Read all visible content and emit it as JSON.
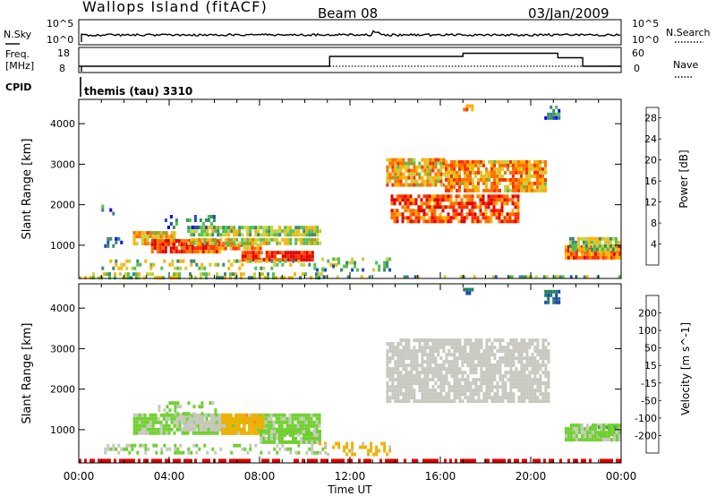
{
  "header": {
    "site": "Wallops Island (fitACF)",
    "beam": "Beam 08",
    "date": "03/Jan/2009"
  },
  "summary": {
    "nsky_label": "N.Sky",
    "nsearch_label": "N.Search",
    "freq_label_1": "Freq.",
    "freq_label_2": "[MHz]",
    "nave_label": "Nave",
    "cpid_label": "CPID",
    "cpid_value": "themis (tau) 3310",
    "noise_ticks": [
      "10^5",
      "10^0"
    ],
    "freq_ticks": [
      "18",
      "8"
    ],
    "nave_ticks": [
      "60",
      "0"
    ]
  },
  "colors": {
    "power_scale": [
      "#0000ff",
      "#2050b0",
      "#3c8a6e",
      "#52c052",
      "#c8d040",
      "#ffb000",
      "#ff7000",
      "#ff3000",
      "#e00000"
    ],
    "velocity_scale": [
      "#e00000",
      "#ff4000",
      "#ff8c00",
      "#f0b000",
      "#c8c8c0",
      "#70d030",
      "#40b040",
      "#208060",
      "#2040c0"
    ]
  },
  "chart_data": [
    {
      "type": "heatmap",
      "title": "",
      "xlabel": "Time UT",
      "ylabel": "Slant Range [km]",
      "xlim": [
        "00:00",
        "24:00"
      ],
      "ylim": [
        180,
        4600
      ],
      "x_ticks": [
        "00:00",
        "04:00",
        "08:00",
        "12:00",
        "16:00",
        "20:00",
        "00:00"
      ],
      "y_ticks": [
        1000,
        2000,
        3000,
        4000
      ],
      "colorbar": {
        "label": "Power [dB]",
        "ticks": [
          4,
          8,
          12,
          16,
          20,
          24,
          28
        ],
        "range": [
          0,
          30
        ]
      },
      "regions": [
        {
          "t_start": 0.0,
          "t_end": 10.8,
          "r_low": 200,
          "r_high": 330,
          "value": 14,
          "density": 0.5
        },
        {
          "t_start": 10.8,
          "t_end": 24.0,
          "r_low": 200,
          "r_high": 260,
          "value": 12,
          "density": 0.35
        },
        {
          "t_start": 2.4,
          "t_end": 4.2,
          "r_low": 1050,
          "r_high": 1350,
          "value": 18,
          "density": 0.9
        },
        {
          "t_start": 3.2,
          "t_end": 6.2,
          "r_low": 850,
          "r_high": 1150,
          "value": 25,
          "density": 0.95
        },
        {
          "t_start": 6.2,
          "t_end": 8.0,
          "r_low": 900,
          "r_high": 1050,
          "value": 21,
          "density": 0.85
        },
        {
          "t_start": 4.8,
          "t_end": 10.7,
          "r_low": 1300,
          "r_high": 1480,
          "value": 14,
          "density": 0.85
        },
        {
          "t_start": 4.8,
          "t_end": 10.7,
          "r_low": 1020,
          "r_high": 1180,
          "value": 16,
          "density": 0.85
        },
        {
          "t_start": 7.2,
          "t_end": 10.3,
          "r_low": 680,
          "r_high": 860,
          "value": 26,
          "density": 0.95
        },
        {
          "t_start": 3.8,
          "t_end": 6.0,
          "r_low": 1450,
          "r_high": 1750,
          "value": 8,
          "density": 0.35
        },
        {
          "t_start": 1.0,
          "t_end": 11.5,
          "r_low": 400,
          "r_high": 650,
          "value": 14,
          "density": 0.3
        },
        {
          "t_start": 10.5,
          "t_end": 13.8,
          "r_low": 350,
          "r_high": 700,
          "value": 11,
          "density": 0.25
        },
        {
          "t_start": 13.6,
          "t_end": 16.2,
          "r_low": 2450,
          "r_high": 3150,
          "value": 18,
          "density": 0.85
        },
        {
          "t_start": 16.2,
          "t_end": 20.6,
          "r_low": 2350,
          "r_high": 3100,
          "value": 19,
          "density": 0.85
        },
        {
          "t_start": 13.8,
          "t_end": 19.5,
          "r_low": 1550,
          "r_high": 2250,
          "value": 24,
          "density": 0.75
        },
        {
          "t_start": 17.0,
          "t_end": 17.4,
          "r_low": 4350,
          "r_high": 4480,
          "value": 18,
          "density": 0.8
        },
        {
          "t_start": 20.6,
          "t_end": 21.2,
          "r_low": 4150,
          "r_high": 4450,
          "value": 7,
          "density": 0.75
        },
        {
          "t_start": 21.5,
          "t_end": 23.9,
          "r_low": 700,
          "r_high": 1000,
          "value": 23,
          "density": 0.95
        },
        {
          "t_start": 21.7,
          "t_end": 23.9,
          "r_low": 900,
          "r_high": 1200,
          "value": 13,
          "density": 0.85
        },
        {
          "t_start": 1.0,
          "t_end": 2.0,
          "r_low": 1000,
          "r_high": 1200,
          "value": 6,
          "density": 0.25
        },
        {
          "t_start": 1.0,
          "t_end": 1.6,
          "r_low": 1750,
          "r_high": 2000,
          "value": 6,
          "density": 0.3
        }
      ]
    },
    {
      "type": "heatmap",
      "title": "",
      "xlabel": "Time UT",
      "ylabel": "Slant Range [km]",
      "xlim": [
        "00:00",
        "24:00"
      ],
      "ylim": [
        180,
        4600
      ],
      "x_ticks": [
        "00:00",
        "04:00",
        "08:00",
        "12:00",
        "16:00",
        "20:00",
        "00:00"
      ],
      "y_ticks": [
        1000,
        2000,
        3000,
        4000
      ],
      "colorbar": {
        "label": "Velocity [m s^-1]",
        "ticks": [
          200,
          100,
          50,
          15,
          -15,
          -50,
          -100,
          -200
        ],
        "range": [
          -250,
          250
        ]
      },
      "regions": [
        {
          "t_start": 0.0,
          "t_end": 24.0,
          "r_low": 200,
          "r_high": 280,
          "value": -220,
          "density": 0.6
        },
        {
          "t_start": 2.4,
          "t_end": 10.7,
          "r_low": 950,
          "r_high": 1400,
          "value": 40,
          "density": 0.9
        },
        {
          "t_start": 4.5,
          "t_end": 6.5,
          "r_low": 1000,
          "r_high": 1400,
          "value": 0,
          "density": 0.85
        },
        {
          "t_start": 6.3,
          "t_end": 8.2,
          "r_low": 950,
          "r_high": 1400,
          "value": -60,
          "density": 0.85
        },
        {
          "t_start": 3.5,
          "t_end": 6.0,
          "r_low": 1400,
          "r_high": 1700,
          "value": 40,
          "density": 0.35
        },
        {
          "t_start": 8.0,
          "t_end": 10.7,
          "r_low": 700,
          "r_high": 1000,
          "value": 40,
          "density": 0.9
        },
        {
          "t_start": 10.5,
          "t_end": 13.8,
          "r_low": 350,
          "r_high": 700,
          "value": -50,
          "density": 0.35
        },
        {
          "t_start": 1.0,
          "t_end": 11.0,
          "r_low": 400,
          "r_high": 650,
          "value": 30,
          "density": 0.3
        },
        {
          "t_start": 13.6,
          "t_end": 20.8,
          "r_low": 1700,
          "r_high": 3250,
          "value": 0,
          "density": 0.8
        },
        {
          "t_start": 17.0,
          "t_end": 17.4,
          "r_low": 4350,
          "r_high": 4500,
          "value": 200,
          "density": 0.8
        },
        {
          "t_start": 20.6,
          "t_end": 21.2,
          "r_low": 4150,
          "r_high": 4450,
          "value": 200,
          "density": 0.75
        },
        {
          "t_start": 21.5,
          "t_end": 23.9,
          "r_low": 750,
          "r_high": 1150,
          "value": 40,
          "density": 0.9
        },
        {
          "t_start": 22.6,
          "t_end": 23.9,
          "r_low": 850,
          "r_high": 1100,
          "value": 80,
          "density": 0.6
        }
      ]
    }
  ]
}
